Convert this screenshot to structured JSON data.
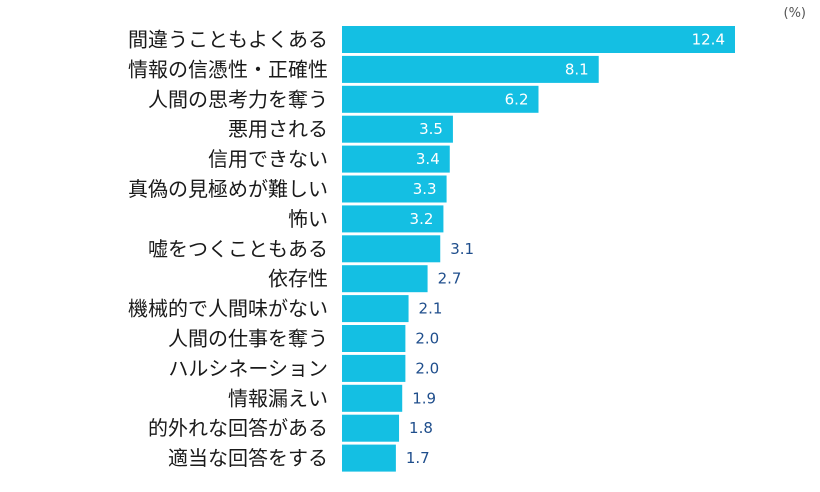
{
  "chart_data": {
    "type": "bar",
    "orientation": "horizontal",
    "unit_label": "(%)",
    "categories": [
      "間違うこともよくある",
      "情報の信憑性・正確性",
      "人間の思考力を奪う",
      "悪用される",
      "信用できない",
      "真偽の見極めが難しい",
      "怖い",
      "嘘をつくこともある",
      "依存性",
      "機械的で人間味がない",
      "人間の仕事を奪う",
      "ハルシネーション",
      "情報漏えい",
      "的外れな回答がある",
      "適当な回答をする"
    ],
    "values": [
      12.4,
      8.1,
      6.2,
      3.5,
      3.4,
      3.3,
      3.2,
      3.1,
      2.7,
      2.1,
      2.0,
      2.0,
      1.9,
      1.8,
      1.7
    ],
    "value_labels": [
      "12.4",
      "8.1",
      "6.2",
      "3.5",
      "3.4",
      "3.3",
      "3.2",
      "3.1",
      "2.7",
      "2.1",
      "2.0",
      "2.0",
      "1.9",
      "1.8",
      "1.7"
    ],
    "xlim": [
      0,
      12.4
    ],
    "grid": false,
    "legend": "none",
    "colors": {
      "bar": "#14bfe3",
      "value_label_outside": "#1f4e8c",
      "value_label_inside": "#ffffff",
      "category_label": "#1a1a1a"
    }
  }
}
